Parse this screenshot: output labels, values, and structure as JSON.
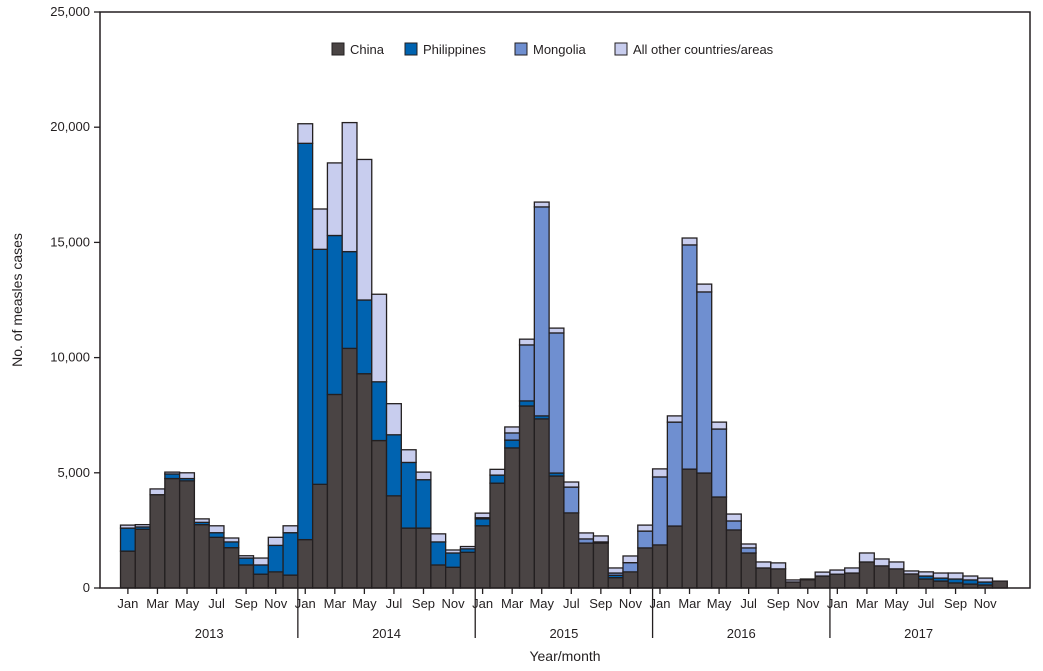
{
  "chart_data": {
    "type": "bar",
    "stacked": true,
    "title": "",
    "xlabel": "Year/month",
    "ylabel": "No. of measles cases",
    "ylim": [
      0,
      25000
    ],
    "yticks": [
      0,
      5000,
      10000,
      15000,
      20000,
      25000
    ],
    "ytick_labels": [
      "0",
      "5,000",
      "10,000",
      "15,000",
      "20,000",
      "25,000"
    ],
    "years": [
      "2013",
      "2014",
      "2015",
      "2016",
      "2017"
    ],
    "month_tick_labels": [
      "Jan",
      "Mar",
      "May",
      "Jul",
      "Sep",
      "Nov"
    ],
    "legend_position": "top-center",
    "grid": false,
    "colors": {
      "China": "#4a4444",
      "Philippines": "#0063b0",
      "Mongolia": "#6f8fd0",
      "All other countries/areas": "#c8cdee"
    },
    "series": [
      {
        "name": "China",
        "values": [
          1600,
          2550,
          4050,
          4750,
          4650,
          2750,
          2200,
          1750,
          1000,
          600,
          700,
          560,
          2100,
          4500,
          8400,
          10400,
          9300,
          6400,
          4000,
          2600,
          2600,
          1000,
          900,
          1550,
          2700,
          4550,
          6080,
          7900,
          7340,
          4860,
          3260,
          1950,
          1950,
          450,
          700,
          1740,
          1870,
          2690,
          5160,
          4990,
          3950,
          2520,
          1520,
          870,
          830,
          260,
          360,
          520,
          600,
          650,
          1130,
          960,
          830,
          610,
          390,
          300,
          220,
          170,
          130,
          300
        ]
      },
      {
        "name": "Philippines",
        "values": [
          1000,
          100,
          0,
          200,
          100,
          100,
          200,
          250,
          300,
          400,
          1150,
          1840,
          17200,
          10200,
          6900,
          4200,
          3200,
          2550,
          2650,
          2850,
          2100,
          1000,
          620,
          150,
          300,
          350,
          340,
          220,
          130,
          130,
          0,
          0,
          0,
          100,
          0,
          0,
          0,
          0,
          0,
          0,
          0,
          0,
          0,
          0,
          0,
          0,
          0,
          0,
          0,
          0,
          0,
          0,
          0,
          0,
          130,
          130,
          170,
          180,
          130,
          0
        ]
      },
      {
        "name": "Mongolia",
        "values": [
          0,
          0,
          0,
          0,
          0,
          0,
          0,
          0,
          0,
          0,
          0,
          0,
          0,
          0,
          0,
          0,
          0,
          0,
          0,
          0,
          0,
          0,
          0,
          0,
          50,
          0,
          310,
          2430,
          9070,
          6080,
          1120,
          180,
          50,
          100,
          400,
          730,
          2950,
          4510,
          9730,
          7860,
          2950,
          390,
          220,
          0,
          0,
          0,
          0,
          0,
          0,
          0,
          0,
          0,
          0,
          0,
          0,
          0,
          0,
          0,
          0,
          0
        ]
      },
      {
        "name": "All other countries/areas",
        "values": [
          130,
          100,
          250,
          80,
          250,
          150,
          300,
          170,
          100,
          300,
          350,
          300,
          850,
          1750,
          3150,
          5600,
          6100,
          3800,
          1350,
          550,
          330,
          350,
          130,
          100,
          200,
          250,
          260,
          250,
          210,
          210,
          220,
          260,
          260,
          220,
          290,
          260,
          350,
          270,
          300,
          340,
          300,
          300,
          170,
          260,
          260,
          90,
          30,
          170,
          180,
          220,
          390,
          300,
          300,
          130,
          180,
          220,
          260,
          170,
          170,
          0
        ]
      }
    ]
  }
}
